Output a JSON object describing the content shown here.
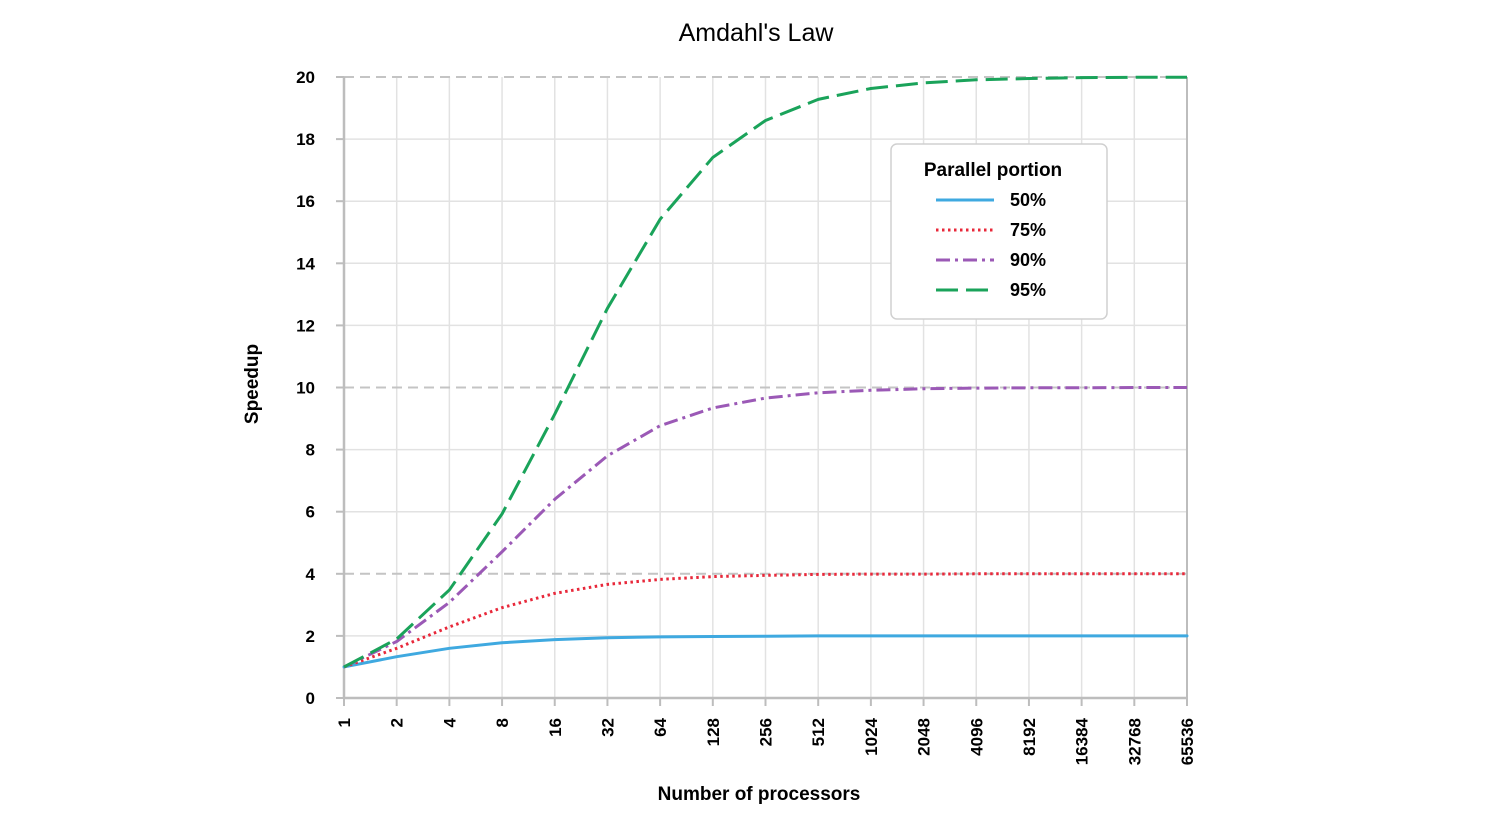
{
  "chart_data": {
    "type": "line",
    "title": "Amdahl's Law",
    "xlabel": "Number of processors",
    "ylabel": "Speedup",
    "x_scale": "log2",
    "x": [
      1,
      2,
      4,
      8,
      16,
      32,
      64,
      128,
      256,
      512,
      1024,
      2048,
      4096,
      8192,
      16384,
      32768,
      65536
    ],
    "x_tick_labels": [
      "1",
      "2",
      "4",
      "8",
      "16",
      "32",
      "64",
      "128",
      "256",
      "512",
      "1024",
      "2048",
      "4096",
      "8192",
      "16384",
      "32768",
      "65536"
    ],
    "y_ticks": [
      0,
      2,
      4,
      6,
      8,
      10,
      12,
      14,
      16,
      18,
      20
    ],
    "y_tick_labels": [
      "0",
      "2",
      "4",
      "6",
      "8",
      "10",
      "12",
      "14",
      "16",
      "18",
      "20"
    ],
    "ylim": [
      0,
      20
    ],
    "grid": true,
    "legend": {
      "title": "Parallel portion",
      "position": "top-right"
    },
    "series": [
      {
        "name": "50%",
        "color": "#3fa9e0",
        "dash": "solid",
        "values": [
          1.0,
          1.33,
          1.6,
          1.78,
          1.88,
          1.94,
          1.97,
          1.98,
          1.99,
          2.0,
          2.0,
          2.0,
          2.0,
          2.0,
          2.0,
          2.0,
          2.0
        ]
      },
      {
        "name": "75%",
        "color": "#e8283a",
        "dash": "dotted",
        "values": [
          1.0,
          1.6,
          2.29,
          2.91,
          3.37,
          3.66,
          3.82,
          3.91,
          3.95,
          3.98,
          3.99,
          3.99,
          4.0,
          4.0,
          4.0,
          4.0,
          4.0
        ]
      },
      {
        "name": "90%",
        "color": "#9b59b6",
        "dash": "dashdot",
        "values": [
          1.0,
          1.82,
          3.08,
          4.71,
          6.4,
          7.8,
          8.77,
          9.34,
          9.66,
          9.83,
          9.91,
          9.96,
          9.98,
          9.99,
          9.99,
          10.0,
          10.0
        ]
      },
      {
        "name": "95%",
        "color": "#1aa35a",
        "dash": "dashed",
        "values": [
          1.0,
          1.9,
          3.48,
          5.93,
          9.14,
          12.55,
          15.42,
          17.41,
          18.6,
          19.28,
          19.63,
          19.81,
          19.91,
          19.95,
          19.98,
          19.99,
          19.99
        ]
      }
    ]
  }
}
